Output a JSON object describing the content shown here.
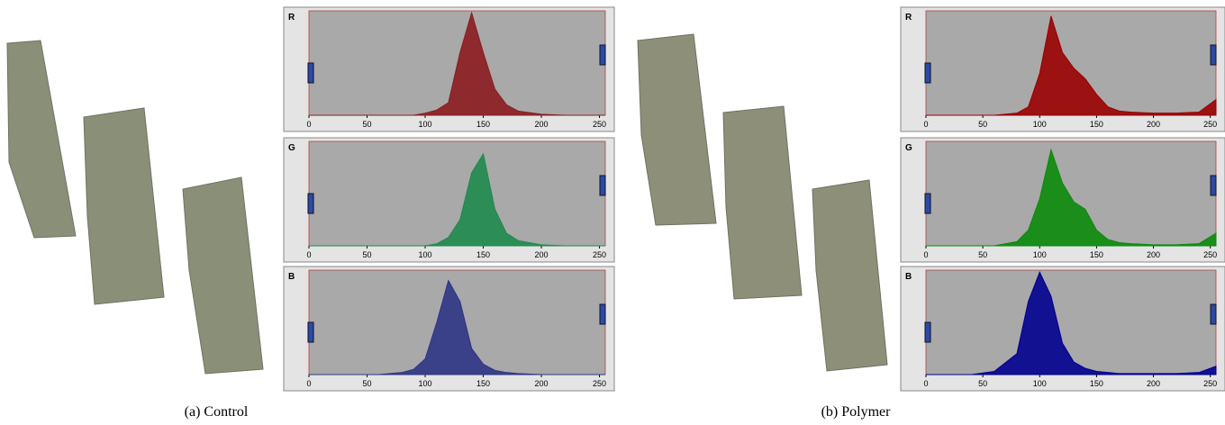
{
  "panels": [
    {
      "caption": "(a) Control",
      "histograms": [
        {
          "type": "area",
          "label": "R",
          "color": "#8b1c1f",
          "xlim": [
            0,
            255
          ],
          "ylim": [
            0,
            100
          ],
          "xticks": [
            0,
            50,
            100,
            150,
            200,
            250
          ],
          "x": [
            0,
            20,
            40,
            60,
            80,
            90,
            100,
            110,
            120,
            130,
            140,
            150,
            160,
            170,
            180,
            200,
            220,
            240,
            255
          ],
          "values": [
            0,
            0,
            0,
            0,
            0,
            0,
            2,
            5,
            12,
            60,
            98,
            60,
            25,
            10,
            4,
            1,
            0,
            0,
            0
          ]
        },
        {
          "type": "area",
          "label": "G",
          "color": "#1f8a4c",
          "xlim": [
            0,
            255
          ],
          "ylim": [
            0,
            100
          ],
          "xticks": [
            0,
            50,
            100,
            150,
            200,
            250
          ],
          "x": [
            0,
            20,
            40,
            60,
            80,
            90,
            100,
            110,
            120,
            130,
            140,
            150,
            160,
            170,
            180,
            200,
            220,
            240,
            255
          ],
          "values": [
            0,
            0,
            0,
            0,
            0,
            0,
            0,
            2,
            8,
            25,
            70,
            88,
            35,
            12,
            5,
            1,
            0,
            0,
            0
          ]
        },
        {
          "type": "area",
          "label": "B",
          "color": "#2e3585",
          "xlim": [
            0,
            255
          ],
          "ylim": [
            0,
            100
          ],
          "xticks": [
            0,
            50,
            100,
            150,
            200,
            250
          ],
          "x": [
            0,
            20,
            40,
            60,
            80,
            90,
            100,
            110,
            120,
            130,
            140,
            150,
            160,
            170,
            180,
            200,
            220,
            240,
            255
          ],
          "values": [
            0,
            0,
            0,
            0,
            2,
            5,
            15,
            50,
            90,
            70,
            25,
            10,
            4,
            2,
            1,
            0,
            0,
            0,
            0
          ]
        }
      ]
    },
    {
      "caption": "(b) Polymer",
      "histograms": [
        {
          "type": "area",
          "label": "R",
          "color": "#9a0000",
          "xlim": [
            0,
            255
          ],
          "ylim": [
            0,
            100
          ],
          "xticks": [
            0,
            50,
            100,
            150,
            200,
            250
          ],
          "x": [
            0,
            20,
            40,
            60,
            80,
            90,
            100,
            110,
            120,
            130,
            140,
            150,
            160,
            170,
            180,
            200,
            220,
            240,
            255
          ],
          "values": [
            0,
            0,
            0,
            0,
            2,
            8,
            40,
            95,
            60,
            45,
            35,
            20,
            8,
            4,
            3,
            2,
            2,
            3,
            15
          ]
        },
        {
          "type": "area",
          "label": "G",
          "color": "#0a8a0a",
          "xlim": [
            0,
            255
          ],
          "ylim": [
            0,
            100
          ],
          "xticks": [
            0,
            50,
            100,
            150,
            200,
            250
          ],
          "x": [
            0,
            20,
            40,
            60,
            80,
            90,
            100,
            110,
            120,
            130,
            140,
            150,
            160,
            170,
            180,
            200,
            220,
            240,
            255
          ],
          "values": [
            0,
            0,
            0,
            0,
            4,
            15,
            45,
            92,
            60,
            42,
            35,
            15,
            6,
            3,
            2,
            1,
            1,
            2,
            12
          ]
        },
        {
          "type": "area",
          "label": "B",
          "color": "#00008f",
          "xlim": [
            0,
            255
          ],
          "ylim": [
            0,
            100
          ],
          "xticks": [
            0,
            50,
            100,
            150,
            200,
            250
          ],
          "x": [
            0,
            20,
            40,
            60,
            80,
            90,
            100,
            110,
            120,
            130,
            140,
            150,
            160,
            170,
            180,
            200,
            220,
            240,
            255
          ],
          "values": [
            0,
            0,
            0,
            3,
            20,
            70,
            98,
            75,
            30,
            12,
            6,
            3,
            2,
            1,
            1,
            1,
            1,
            2,
            8
          ]
        }
      ]
    }
  ]
}
